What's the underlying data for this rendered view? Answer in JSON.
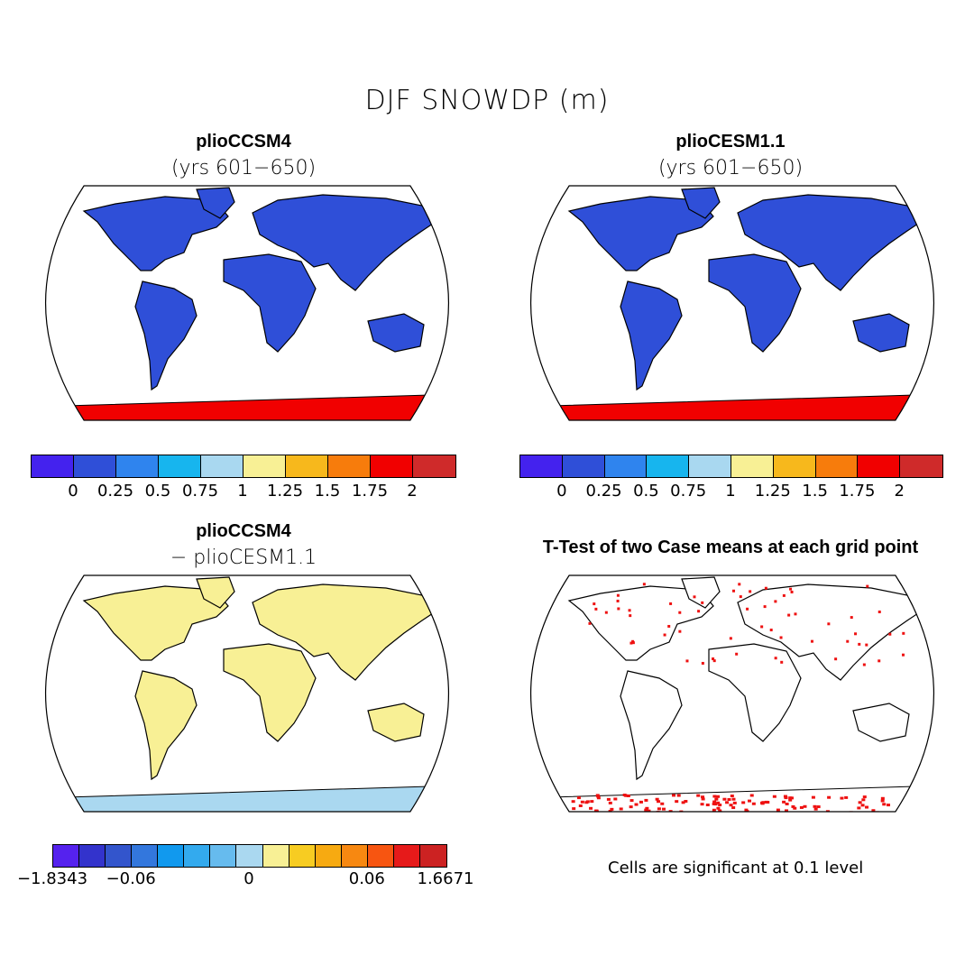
{
  "title": "DJF SNOWDP (m)",
  "panels": [
    {
      "title": "plioCCSM4",
      "subtitle": "(yrs 601−650)"
    },
    {
      "title": "plioCESM1.1",
      "subtitle": "(yrs 601−650)"
    },
    {
      "title": "plioCCSM4",
      "subtitle": "− plioCESM1.1"
    },
    {
      "title": "T-Test of two Case means at each grid point",
      "subtitle": ""
    }
  ],
  "colorbar_abs": {
    "colors": [
      "#4422ee",
      "#2f4fd8",
      "#2f84ee",
      "#17b5ee",
      "#a9d8f0",
      "#f8f095",
      "#f7b81c",
      "#f77c0c",
      "#f10000",
      "#cf2a2a"
    ],
    "labels": [
      "0",
      "0.25",
      "0.5",
      "0.75",
      "1",
      "1.25",
      "1.5",
      "1.75",
      "2"
    ]
  },
  "colorbar_diff": {
    "colors": [
      "#5522ee",
      "#3333cc",
      "#3355cc",
      "#3377dd",
      "#1199ee",
      "#33aaee",
      "#66bbee",
      "#aad8f0",
      "#f8f095",
      "#f7cc22",
      "#f7aa11",
      "#f78811",
      "#f75511",
      "#e61a1a",
      "#cc2222"
    ],
    "labels": [
      "−1.8343",
      "−0.06",
      "0",
      "0.06",
      "1.6671"
    ]
  },
  "significance_note": "Cells are significant at 0.1 level",
  "colors": {
    "land_snow_low": "#3355d6",
    "land_diff_neutral": "#f8f095",
    "significant": "#ee1111"
  }
}
